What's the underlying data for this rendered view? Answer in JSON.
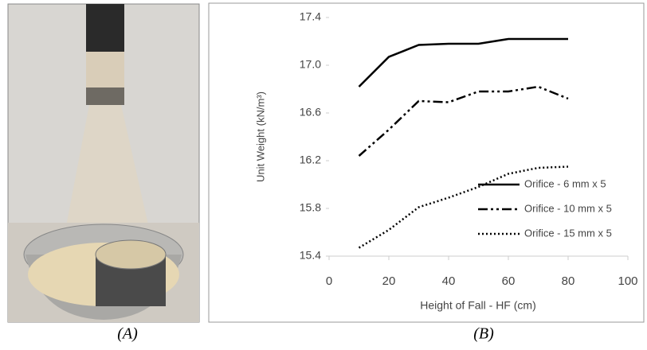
{
  "captions": [
    "(A)",
    "(B)"
  ],
  "chart_data": {
    "type": "line",
    "x_label": "Height of Fall - HF (cm)",
    "y_label": "Unit Weight (kN/m³)",
    "x": [
      10,
      20,
      30,
      40,
      50,
      60,
      70,
      80
    ],
    "series": [
      {
        "name": "Orifice - 6 mm x 5",
        "color": "#000000",
        "style": "solid",
        "values": [
          16.82,
          17.07,
          17.17,
          17.18,
          17.18,
          17.22,
          17.22,
          17.22
        ]
      },
      {
        "name": "Orifice - 10 mm x 5",
        "color": "#000000",
        "style": "dashdot",
        "values": [
          16.24,
          16.46,
          16.7,
          16.69,
          16.78,
          16.78,
          16.82,
          16.72
        ]
      },
      {
        "name": "Orifice - 15 mm x 5",
        "color": "#000000",
        "style": "dotted",
        "values": [
          15.47,
          15.62,
          15.81,
          15.89,
          15.98,
          16.09,
          16.14,
          16.15
        ]
      }
    ],
    "xlim": [
      0,
      100
    ],
    "xticks": [
      0,
      20,
      40,
      60,
      80,
      100
    ],
    "ylim": [
      15.4,
      17.4
    ],
    "yticks": [
      15.4,
      15.8,
      16.2,
      16.6,
      {
        "value": 17,
        "label": "17.0"
      },
      17.4
    ],
    "legend": "lower-right",
    "grid": false
  }
}
